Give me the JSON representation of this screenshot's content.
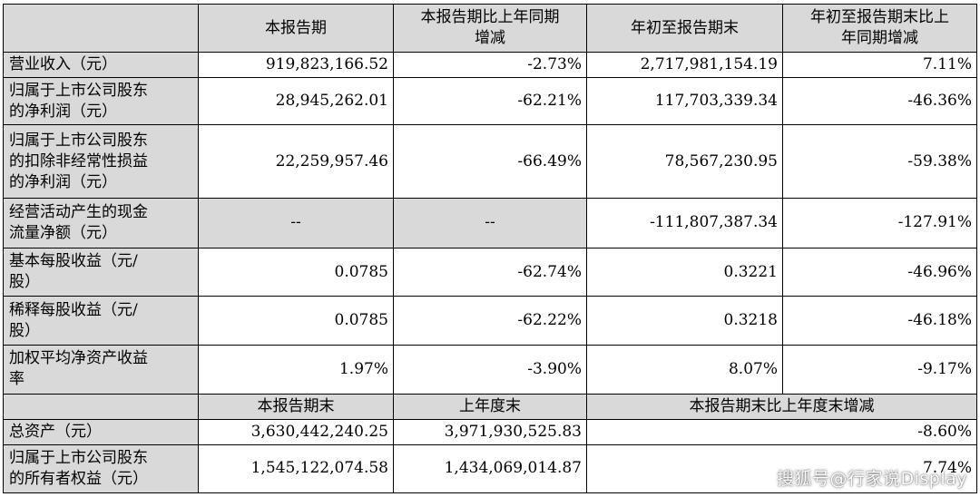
{
  "header": {
    "col1": "本报告期",
    "col2_line1": "本报告期比上年同期",
    "col2_line2": "增减",
    "col3": "年初至报告期末",
    "col4_line1": "年初至报告期末比上",
    "col4_line2": "年同期增减"
  },
  "rows": [
    {
      "label_lines": [
        "营业收入（元）"
      ],
      "v1": "919,823,166.52",
      "v2": "-2.73%",
      "v3": "2,717,981,154.19",
      "v4": "7.11%"
    },
    {
      "label_lines": [
        "归属于上市公司股东",
        "的净利润（元）"
      ],
      "v1": "28,945,262.01",
      "v2": "-62.21%",
      "v3": "117,703,339.34",
      "v4": "-46.36%"
    },
    {
      "label_lines": [
        "归属于上市公司股东",
        "的扣除非经常性损益",
        "的净利润（元）"
      ],
      "v1": "22,259,957.46",
      "v2": "-66.49%",
      "v3": "78,567,230.95",
      "v4": "-59.38%"
    },
    {
      "label_lines": [
        "经营活动产生的现金",
        "流量净额（元）"
      ],
      "v1": "--",
      "v2": "--",
      "v3": "-111,807,387.34",
      "v4": "-127.91%"
    },
    {
      "label_lines": [
        "基本每股收益（元/",
        "股）"
      ],
      "v1": "0.0785",
      "v2": "-62.74%",
      "v3": "0.3221",
      "v4": "-46.96%"
    },
    {
      "label_lines": [
        "稀释每股收益（元/",
        "股）"
      ],
      "v1": "0.0785",
      "v2": "-62.22%",
      "v3": "0.3218",
      "v4": "-46.18%"
    },
    {
      "label_lines": [
        "加权平均净资产收益",
        "率"
      ],
      "v1": "1.97%",
      "v2": "-3.90%",
      "v3": "8.07%",
      "v4": "-9.17%"
    }
  ],
  "header2": {
    "col1": "本报告期末",
    "col2": "上年度末",
    "col3": "本报告期末比上年度末增减"
  },
  "rows2": [
    {
      "label_lines": [
        "总资产（元）"
      ],
      "v1": "3,630,442,240.25",
      "v2": "3,971,930,525.83",
      "v3": "-8.60%"
    },
    {
      "label_lines": [
        "归属于上市公司股东",
        "的所有者权益（元）"
      ],
      "v1": "1,545,122,074.58",
      "v2": "1,434,069,014.87",
      "v3": "7.74%"
    }
  ],
  "watermark": "搜狐号@行家说Display"
}
